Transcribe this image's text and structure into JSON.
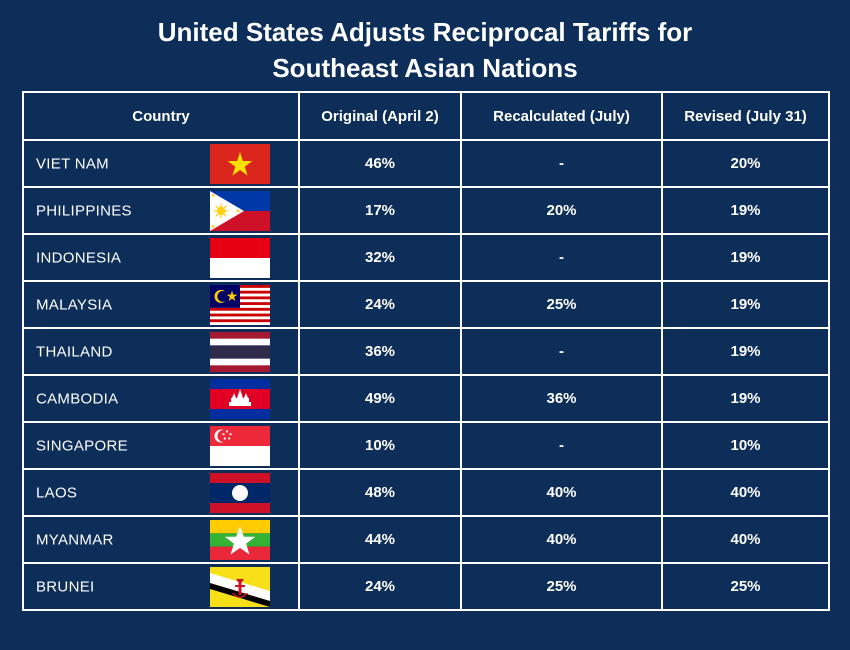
{
  "title_line1": "United States Adjusts Reciprocal Tariffs for",
  "title_line2": "Southeast Asian Nations",
  "chart_data": {
    "type": "table",
    "columns": [
      "Country",
      "Original (April 2)",
      "Recalculated (July)",
      "Revised (July 31)"
    ],
    "rows": [
      {
        "country": "VIET NAM",
        "flag": "vietnam-flag-icon",
        "original": "46%",
        "recalculated": "-",
        "revised": "20%"
      },
      {
        "country": "PHILIPPINES",
        "flag": "philippines-flag-icon",
        "original": "17%",
        "recalculated": "20%",
        "revised": "19%"
      },
      {
        "country": "INDONESIA",
        "flag": "indonesia-flag-icon",
        "original": "32%",
        "recalculated": "-",
        "revised": "19%"
      },
      {
        "country": "MALAYSIA",
        "flag": "malaysia-flag-icon",
        "original": "24%",
        "recalculated": "25%",
        "revised": "19%"
      },
      {
        "country": "THAILAND",
        "flag": "thailand-flag-icon",
        "original": "36%",
        "recalculated": "-",
        "revised": "19%"
      },
      {
        "country": "CAMBODIA",
        "flag": "cambodia-flag-icon",
        "original": "49%",
        "recalculated": "36%",
        "revised": "19%"
      },
      {
        "country": "SINGAPORE",
        "flag": "singapore-flag-icon",
        "original": "10%",
        "recalculated": "-",
        "revised": "10%"
      },
      {
        "country": "LAOS",
        "flag": "laos-flag-icon",
        "original": "48%",
        "recalculated": "40%",
        "revised": "40%"
      },
      {
        "country": "MYANMAR",
        "flag": "myanmar-flag-icon",
        "original": "44%",
        "recalculated": "40%",
        "revised": "40%"
      },
      {
        "country": "BRUNEI",
        "flag": "brunei-flag-icon",
        "original": "24%",
        "recalculated": "25%",
        "revised": "25%"
      }
    ]
  },
  "colors": {
    "background": "#0e2e5a",
    "text": "#ffffff",
    "grid": "#ffffff"
  }
}
